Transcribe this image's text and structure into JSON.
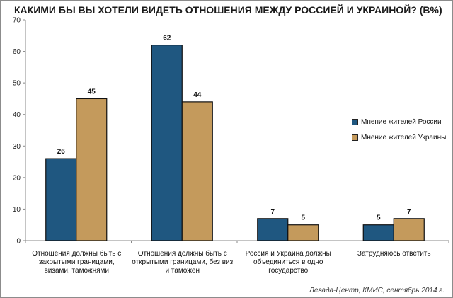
{
  "chart_data": {
    "type": "bar",
    "title": "КАКИМИ БЫ ВЫ ХОТЕЛИ ВИДЕТЬ ОТНОШЕНИЯ МЕЖДУ РОССИЕЙ И УКРАИНОЙ? (В%)",
    "categories": [
      "Отношения должны быть с закрытыми границами, визами, таможнями",
      "Отношения должны быть с открытыми границами, без виз и таможен",
      "Россия и Украина должны объединиться в одно государство",
      "Затрудняюсь ответить"
    ],
    "series": [
      {
        "name": "Мнение жителей России",
        "values": [
          26,
          62,
          7,
          5
        ],
        "color": "#1f5780"
      },
      {
        "name": "Мнение жителей Украины",
        "values": [
          45,
          44,
          5,
          7
        ],
        "color": "#c49a5c"
      }
    ],
    "ylim": [
      0,
      70
    ],
    "yticks": [
      0,
      10,
      20,
      30,
      40,
      50,
      60,
      70
    ],
    "xlabel": "",
    "ylabel": "",
    "legend": "right",
    "grid": false
  },
  "source": "Левада-Центр, КМИС, сентябрь 2014 г."
}
